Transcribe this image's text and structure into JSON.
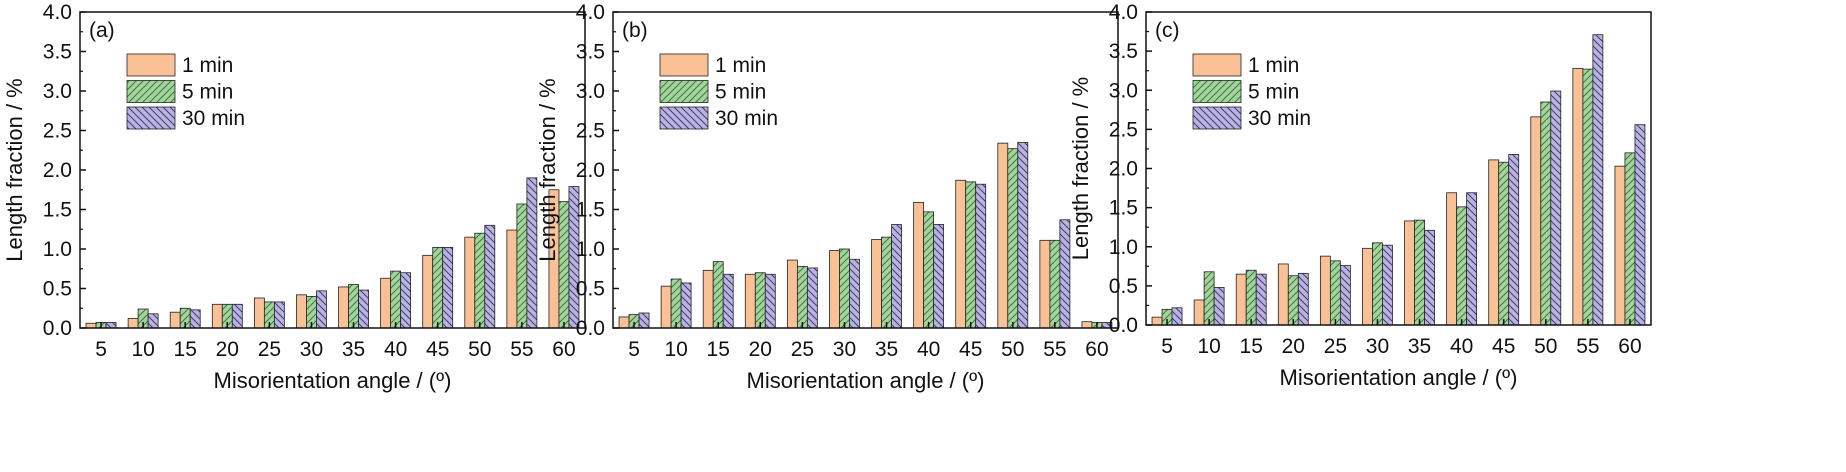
{
  "figure": {
    "panels_count": 3
  },
  "chart_data": [
    {
      "type": "bar",
      "panel_label": "(a)",
      "xlabel": "Misorientation angle / (º)",
      "ylabel": "Length fraction / %",
      "ylim": [
        0,
        4.0
      ],
      "yticks": [
        "0.0",
        "0.5",
        "1.0",
        "1.5",
        "2.0",
        "2.5",
        "3.0",
        "3.5",
        "4.0"
      ],
      "categories": [
        "5",
        "10",
        "15",
        "20",
        "25",
        "30",
        "35",
        "40",
        "45",
        "50",
        "55",
        "60"
      ],
      "legend_position": "top-left",
      "series": [
        {
          "name": "1 min",
          "values": [
            0.06,
            0.12,
            0.2,
            0.3,
            0.38,
            0.42,
            0.52,
            0.63,
            0.92,
            1.15,
            1.24,
            1.75
          ]
        },
        {
          "name": "5 min",
          "values": [
            0.07,
            0.24,
            0.25,
            0.3,
            0.33,
            0.4,
            0.55,
            0.72,
            1.02,
            1.2,
            1.57,
            1.6
          ]
        },
        {
          "name": "30 min",
          "values": [
            0.07,
            0.18,
            0.23,
            0.3,
            0.33,
            0.47,
            0.48,
            0.7,
            1.02,
            1.3,
            1.9,
            1.79
          ]
        }
      ]
    },
    {
      "type": "bar",
      "panel_label": "(b)",
      "xlabel": "Misorientation angle / (º)",
      "ylabel": "Length fraction / %",
      "ylim": [
        0,
        4.0
      ],
      "yticks": [
        "0.0",
        "0.5",
        "1.0",
        "1.5",
        "2.0",
        "2.5",
        "3.0",
        "3.5",
        "4.0"
      ],
      "categories": [
        "5",
        "10",
        "15",
        "20",
        "25",
        "30",
        "35",
        "40",
        "45",
        "50",
        "55",
        "60"
      ],
      "legend_position": "top-left",
      "series": [
        {
          "name": "1 min",
          "values": [
            0.14,
            0.53,
            0.73,
            0.68,
            0.86,
            0.98,
            1.12,
            1.59,
            1.87,
            2.34,
            1.11,
            0.08
          ]
        },
        {
          "name": "5 min",
          "values": [
            0.17,
            0.62,
            0.84,
            0.7,
            0.78,
            1.0,
            1.15,
            1.47,
            1.85,
            2.27,
            1.11,
            0.07
          ]
        },
        {
          "name": "30 min",
          "values": [
            0.19,
            0.57,
            0.68,
            0.68,
            0.76,
            0.87,
            1.31,
            1.31,
            1.82,
            2.35,
            1.37,
            0.07
          ]
        }
      ]
    },
    {
      "type": "bar",
      "panel_label": "(c)",
      "xlabel": "Misorientation angle / (º)",
      "ylabel": "Length fraction / %",
      "ylim": [
        0,
        4.0
      ],
      "yticks": [
        "0.0",
        "0.5",
        "1.0",
        "1.5",
        "2.0",
        "2.5",
        "3.0",
        "3.5",
        "4.0"
      ],
      "categories": [
        "5",
        "10",
        "15",
        "20",
        "25",
        "30",
        "35",
        "40",
        "45",
        "50",
        "55",
        "60"
      ],
      "legend_position": "top-left",
      "series": [
        {
          "name": "1 min",
          "values": [
            0.1,
            0.32,
            0.65,
            0.78,
            0.88,
            0.98,
            1.33,
            1.69,
            2.11,
            2.66,
            3.28,
            2.03
          ]
        },
        {
          "name": "5 min",
          "values": [
            0.2,
            0.68,
            0.7,
            0.63,
            0.82,
            1.05,
            1.34,
            1.51,
            2.08,
            2.85,
            3.27,
            2.2
          ]
        },
        {
          "name": "30 min",
          "values": [
            0.22,
            0.48,
            0.65,
            0.66,
            0.76,
            1.02,
            1.21,
            1.69,
            2.18,
            2.99,
            3.71,
            2.56
          ]
        }
      ]
    }
  ],
  "style": {
    "series_fill": [
      "#f9c195",
      "#a5d39e",
      "#b9b4de"
    ],
    "series_hatch": [
      "none",
      "#3a7a3a",
      "#3f3a78"
    ],
    "hatch_direction": [
      "none",
      "forward",
      "backward"
    ],
    "axis_color": "#111111"
  }
}
